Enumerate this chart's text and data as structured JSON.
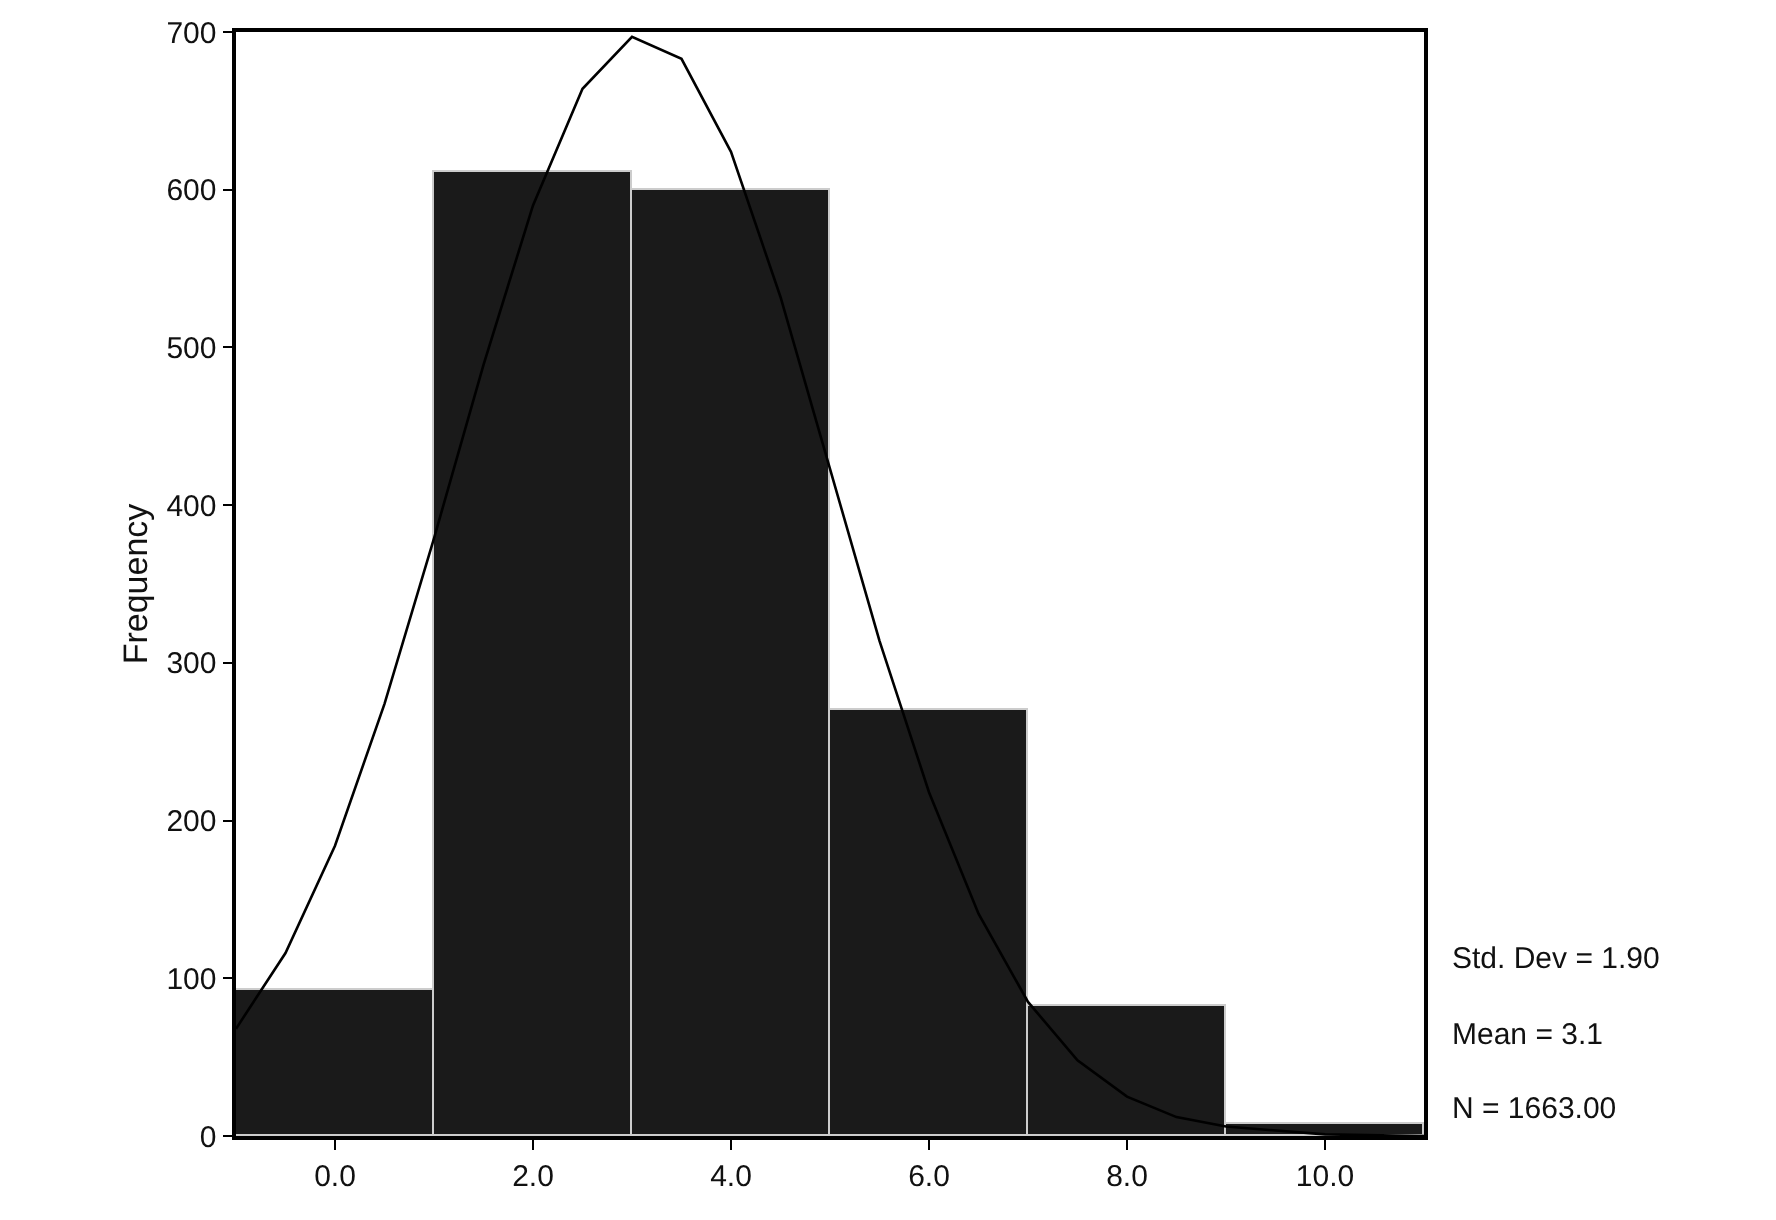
{
  "chart_data": {
    "type": "histogram",
    "ylabel": "Frequency",
    "bins": [
      -1,
      1,
      3,
      5,
      7,
      9,
      11
    ],
    "values": [
      92,
      611,
      600,
      270,
      82,
      8
    ],
    "color": "#1a1a1a",
    "series": [
      {
        "type": "line",
        "color": "#000000",
        "x": [
          -1,
          -0.5,
          0,
          0.5,
          1,
          1.5,
          2,
          2.5,
          3,
          3.5,
          4,
          4.5,
          5,
          5.5,
          6,
          6.5,
          7,
          7.5,
          8,
          8.5,
          9,
          10,
          11
        ],
        "values": [
          68,
          116,
          184,
          274,
          379,
          489,
          590,
          664,
          697,
          683,
          624,
          532,
          423,
          314,
          218,
          141,
          85,
          48,
          25,
          12,
          6,
          1,
          0
        ]
      }
    ],
    "xlim": [
      -1,
      11
    ],
    "xticks": [
      {
        "value": 0,
        "label": "0.0"
      },
      {
        "value": 2,
        "label": "2.0"
      },
      {
        "value": 4,
        "label": "4.0"
      },
      {
        "value": 6,
        "label": "6.0"
      },
      {
        "value": 8,
        "label": "8.0"
      },
      {
        "value": 10,
        "label": "10.0"
      }
    ],
    "ylim": [
      0,
      700
    ],
    "yticks": [
      0,
      100,
      200,
      300,
      400,
      500,
      600,
      700
    ],
    "grid": false,
    "marker": "none",
    "line_style": "solid",
    "annotations": [
      "Std. Dev = 1.90",
      "Mean = 3.1",
      "N = 1663.00"
    ]
  }
}
